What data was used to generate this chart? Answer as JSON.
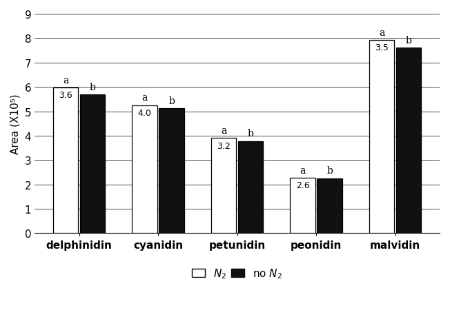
{
  "categories": [
    "delphinidin",
    "cyanidin",
    "petunidin",
    "peonidin",
    "malvidin"
  ],
  "n2_values": [
    5.97,
    5.25,
    3.9,
    2.28,
    7.92
  ],
  "non2_values": [
    5.7,
    5.13,
    3.78,
    2.26,
    7.62
  ],
  "n2_labels": [
    "3.6",
    "4.0",
    "3.2",
    "2.6",
    "3.5"
  ],
  "bar_width": 0.32,
  "ylim": [
    0,
    9
  ],
  "yticks": [
    0,
    1,
    2,
    3,
    4,
    5,
    6,
    7,
    8,
    9
  ],
  "ylabel": "Area (X10⁵)",
  "n2_color": "#ffffff",
  "non2_color": "#111111",
  "edge_color": "#000000",
  "stat_label_a": "a",
  "stat_label_b": "b",
  "axis_fontsize": 11,
  "tick_fontsize": 11,
  "legend_fontsize": 11,
  "annotation_fontsize": 9,
  "stat_fontsize": 10
}
